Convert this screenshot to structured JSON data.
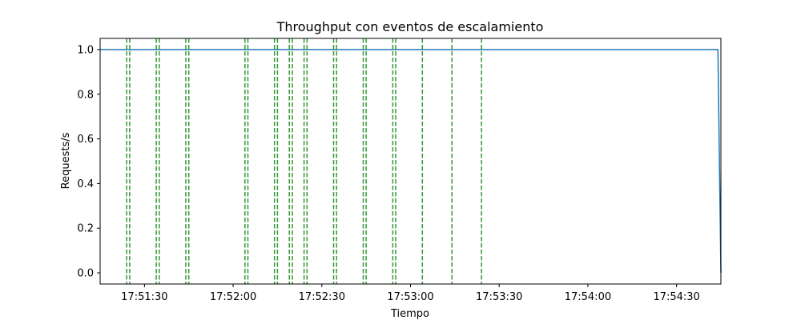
{
  "chart_data": {
    "type": "line",
    "title": "Throughput con eventos de escalamiento",
    "xlabel": "Tiempo",
    "ylabel": "Requests/s",
    "xlim": [
      "17:51:15",
      "17:54:45"
    ],
    "ylim": [
      -0.05,
      1.05
    ],
    "x_ticks": [
      "17:51:30",
      "17:52:00",
      "17:52:30",
      "17:53:00",
      "17:53:30",
      "17:54:00",
      "17:54:30"
    ],
    "y_ticks": [
      "0.0",
      "0.2",
      "0.4",
      "0.6",
      "0.8",
      "1.0"
    ],
    "grid": false,
    "series": [
      {
        "color": "#1f77b4",
        "x": [
          "17:51:15",
          "17:54:44",
          "17:54:45"
        ],
        "y": [
          1.0,
          1.0,
          0.0
        ]
      }
    ],
    "scaling_events": {
      "color": "#008000",
      "style": "dashed",
      "times": [
        "17:51:24",
        "17:51:25",
        "17:51:34",
        "17:51:35",
        "17:51:44",
        "17:51:45",
        "17:52:04",
        "17:52:05",
        "17:52:14",
        "17:52:15",
        "17:52:19",
        "17:52:20",
        "17:52:24",
        "17:52:25",
        "17:52:34",
        "17:52:35",
        "17:52:44",
        "17:52:45",
        "17:52:54",
        "17:52:55",
        "17:53:04",
        "17:53:14",
        "17:53:24"
      ]
    }
  }
}
